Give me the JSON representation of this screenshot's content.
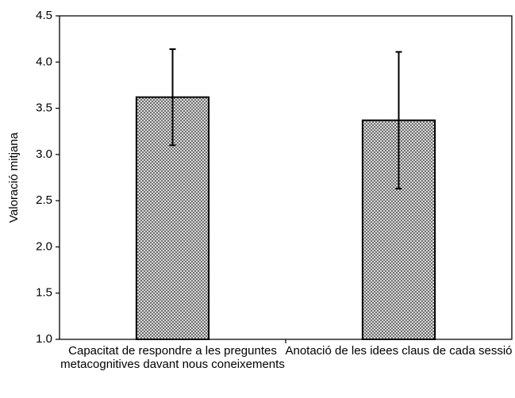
{
  "chart_data": {
    "type": "bar",
    "ylabel": "Valoració mitjana",
    "categories": [
      "Capacitat de respondre a les preguntes metacognitives davant nous coneixements",
      "Anotació de les idees claus de cada sessió"
    ],
    "values": [
      3.62,
      3.37
    ],
    "errors": [
      0.52,
      0.74
    ],
    "color": "#888888",
    "ylim": [
      1,
      4.5
    ],
    "yticks": [
      {
        "value": 1,
        "label": "1.0"
      },
      1.5,
      {
        "value": 2,
        "label": "2.0"
      },
      2.5,
      {
        "value": 3,
        "label": "3.0"
      },
      3.5,
      {
        "value": 4,
        "label": "4.0"
      },
      4.5
    ]
  }
}
